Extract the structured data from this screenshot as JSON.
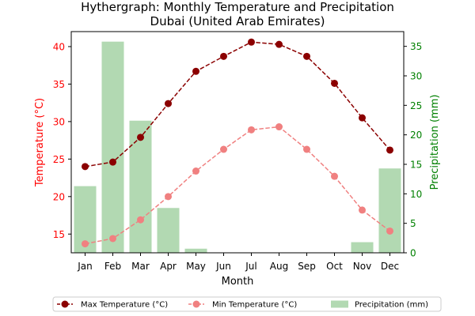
{
  "chart_data": {
    "type": "line",
    "title_line1": "Hythergraph: Monthly Temperature and Precipitation",
    "title_line2": "Dubai (United Arab Emirates)",
    "xlabel": "Month",
    "ylabel_left": "Temperature (°C)",
    "ylabel_right": "Precipitation (mm)",
    "categories": [
      "Jan",
      "Feb",
      "Mar",
      "Apr",
      "May",
      "Jun",
      "Jul",
      "Aug",
      "Sep",
      "Oct",
      "Nov",
      "Dec"
    ],
    "y_left_range": [
      12.5,
      42
    ],
    "y_left_ticks": [
      15,
      20,
      25,
      30,
      35,
      40
    ],
    "y_right_range": [
      0,
      37.5
    ],
    "y_right_ticks": [
      0,
      5,
      10,
      15,
      20,
      25,
      30,
      35
    ],
    "series": [
      {
        "name": "Max Temperature (°C)",
        "type": "line",
        "axis": "left",
        "color": "#8b0000",
        "values": [
          24.0,
          24.6,
          27.9,
          32.4,
          36.7,
          38.7,
          40.6,
          40.3,
          38.7,
          35.1,
          30.5,
          26.2
        ]
      },
      {
        "name": "Min Temperature (°C)",
        "type": "line",
        "axis": "left",
        "color": "#f08080",
        "values": [
          13.7,
          14.4,
          16.9,
          20.0,
          23.4,
          26.3,
          28.9,
          29.3,
          26.3,
          22.7,
          18.2,
          15.4
        ]
      },
      {
        "name": "Precipitation (mm)",
        "type": "bar",
        "axis": "right",
        "color": "#b2d9b2",
        "values": [
          11.3,
          35.8,
          22.4,
          7.6,
          0.7,
          0.0,
          0.0,
          0.0,
          0.0,
          0.0,
          1.8,
          14.3
        ]
      }
    ],
    "grid": false,
    "legend_position": "bottom-center"
  }
}
